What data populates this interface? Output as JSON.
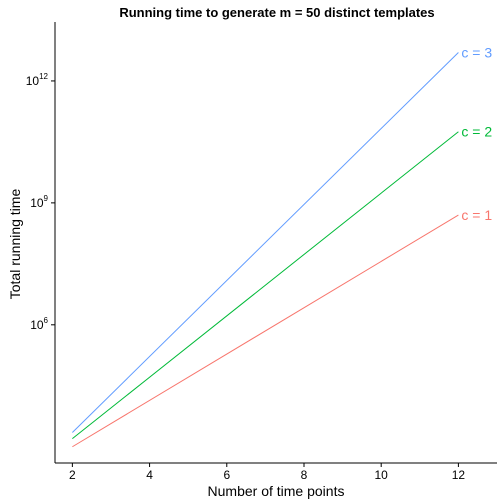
{
  "chart_data": {
    "type": "line",
    "title": "Running time to generate m = 50 distinct templates",
    "xlabel": "Number of time points",
    "ylabel": "Total running time",
    "xlim": [
      1.55,
      13.0
    ],
    "ylim_log10": [
      2.6,
      13.45
    ],
    "x_ticks": [
      2,
      4,
      6,
      8,
      10,
      12
    ],
    "y_ticks": [
      {
        "base": "10",
        "exponent": "6",
        "log10": 6
      },
      {
        "base": "10",
        "exponent": "9",
        "log10": 9
      },
      {
        "base": "10",
        "exponent": "12",
        "log10": 12
      }
    ],
    "y_scale": "log10",
    "grid": false,
    "series": [
      {
        "name": "c = 1",
        "color": "#F8766D",
        "x": [
          2,
          12
        ],
        "log10_y": [
          3.0,
          8.7
        ]
      },
      {
        "name": "c = 2",
        "color": "#00BA38",
        "x": [
          2,
          12
        ],
        "log10_y": [
          3.2,
          10.75
        ]
      },
      {
        "name": "c = 3",
        "color": "#619CFF",
        "x": [
          2,
          12
        ],
        "log10_y": [
          3.35,
          12.7
        ]
      }
    ]
  }
}
